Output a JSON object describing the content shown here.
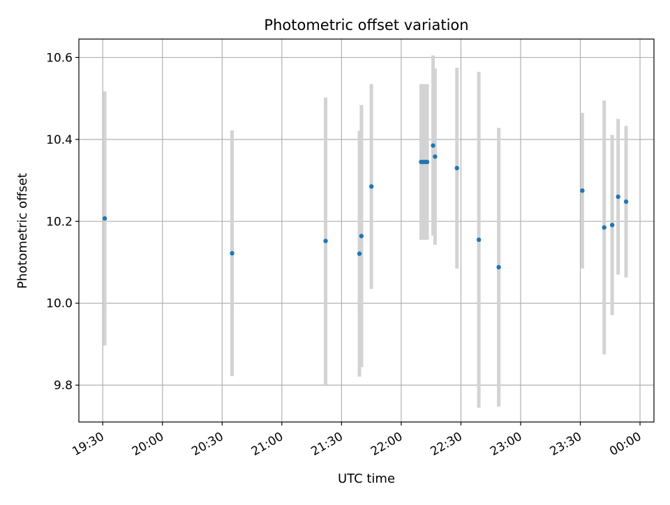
{
  "chart_data": {
    "type": "scatter",
    "title": "Photometric offset variation",
    "xlabel": "UTC time",
    "ylabel": "Photometric offset",
    "grid": true,
    "xlim": [
      "19:18",
      "00:07"
    ],
    "ylim": [
      9.71,
      10.645
    ],
    "x_ticks": [
      "19:30",
      "20:00",
      "20:30",
      "21:00",
      "21:30",
      "22:00",
      "22:30",
      "23:00",
      "23:30",
      "00:00"
    ],
    "y_ticks": [
      9.8,
      10.0,
      10.2,
      10.4,
      10.6
    ],
    "y_tick_labels": [
      "9.8",
      "10.0",
      "10.2",
      "10.4",
      "10.6"
    ],
    "colors": {
      "point": "#1f77b4",
      "errorbar": "#d3d3d3",
      "grid": "#b0b0b0"
    },
    "points": [
      {
        "x": "19:31",
        "y": 10.207,
        "err": 0.31
      },
      {
        "x": "20:35",
        "y": 10.122,
        "err": 0.3
      },
      {
        "x": "21:22",
        "y": 10.152,
        "err": 0.35
      },
      {
        "x": "21:39",
        "y": 10.121,
        "err": 0.3
      },
      {
        "x": "21:40",
        "y": 10.164,
        "err": 0.32
      },
      {
        "x": "21:45",
        "y": 10.285,
        "err": 0.25
      },
      {
        "x": "22:10",
        "y": 10.345,
        "err": 0.19
      },
      {
        "x": "22:11",
        "y": 10.345,
        "err": 0.19
      },
      {
        "x": "22:12",
        "y": 10.345,
        "err": 0.19
      },
      {
        "x": "22:13",
        "y": 10.345,
        "err": 0.19
      },
      {
        "x": "22:16",
        "y": 10.385,
        "err": 0.22
      },
      {
        "x": "22:17",
        "y": 10.358,
        "err": 0.215
      },
      {
        "x": "22:28",
        "y": 10.33,
        "err": 0.245
      },
      {
        "x": "22:39",
        "y": 10.155,
        "err": 0.41
      },
      {
        "x": "22:49",
        "y": 10.088,
        "err": 0.34
      },
      {
        "x": "23:31",
        "y": 10.275,
        "err": 0.19
      },
      {
        "x": "23:42",
        "y": 10.185,
        "err": 0.31
      },
      {
        "x": "23:46",
        "y": 10.191,
        "err": 0.22
      },
      {
        "x": "23:49",
        "y": 10.26,
        "err": 0.19
      },
      {
        "x": "23:53",
        "y": 10.248,
        "err": 0.185
      }
    ]
  }
}
